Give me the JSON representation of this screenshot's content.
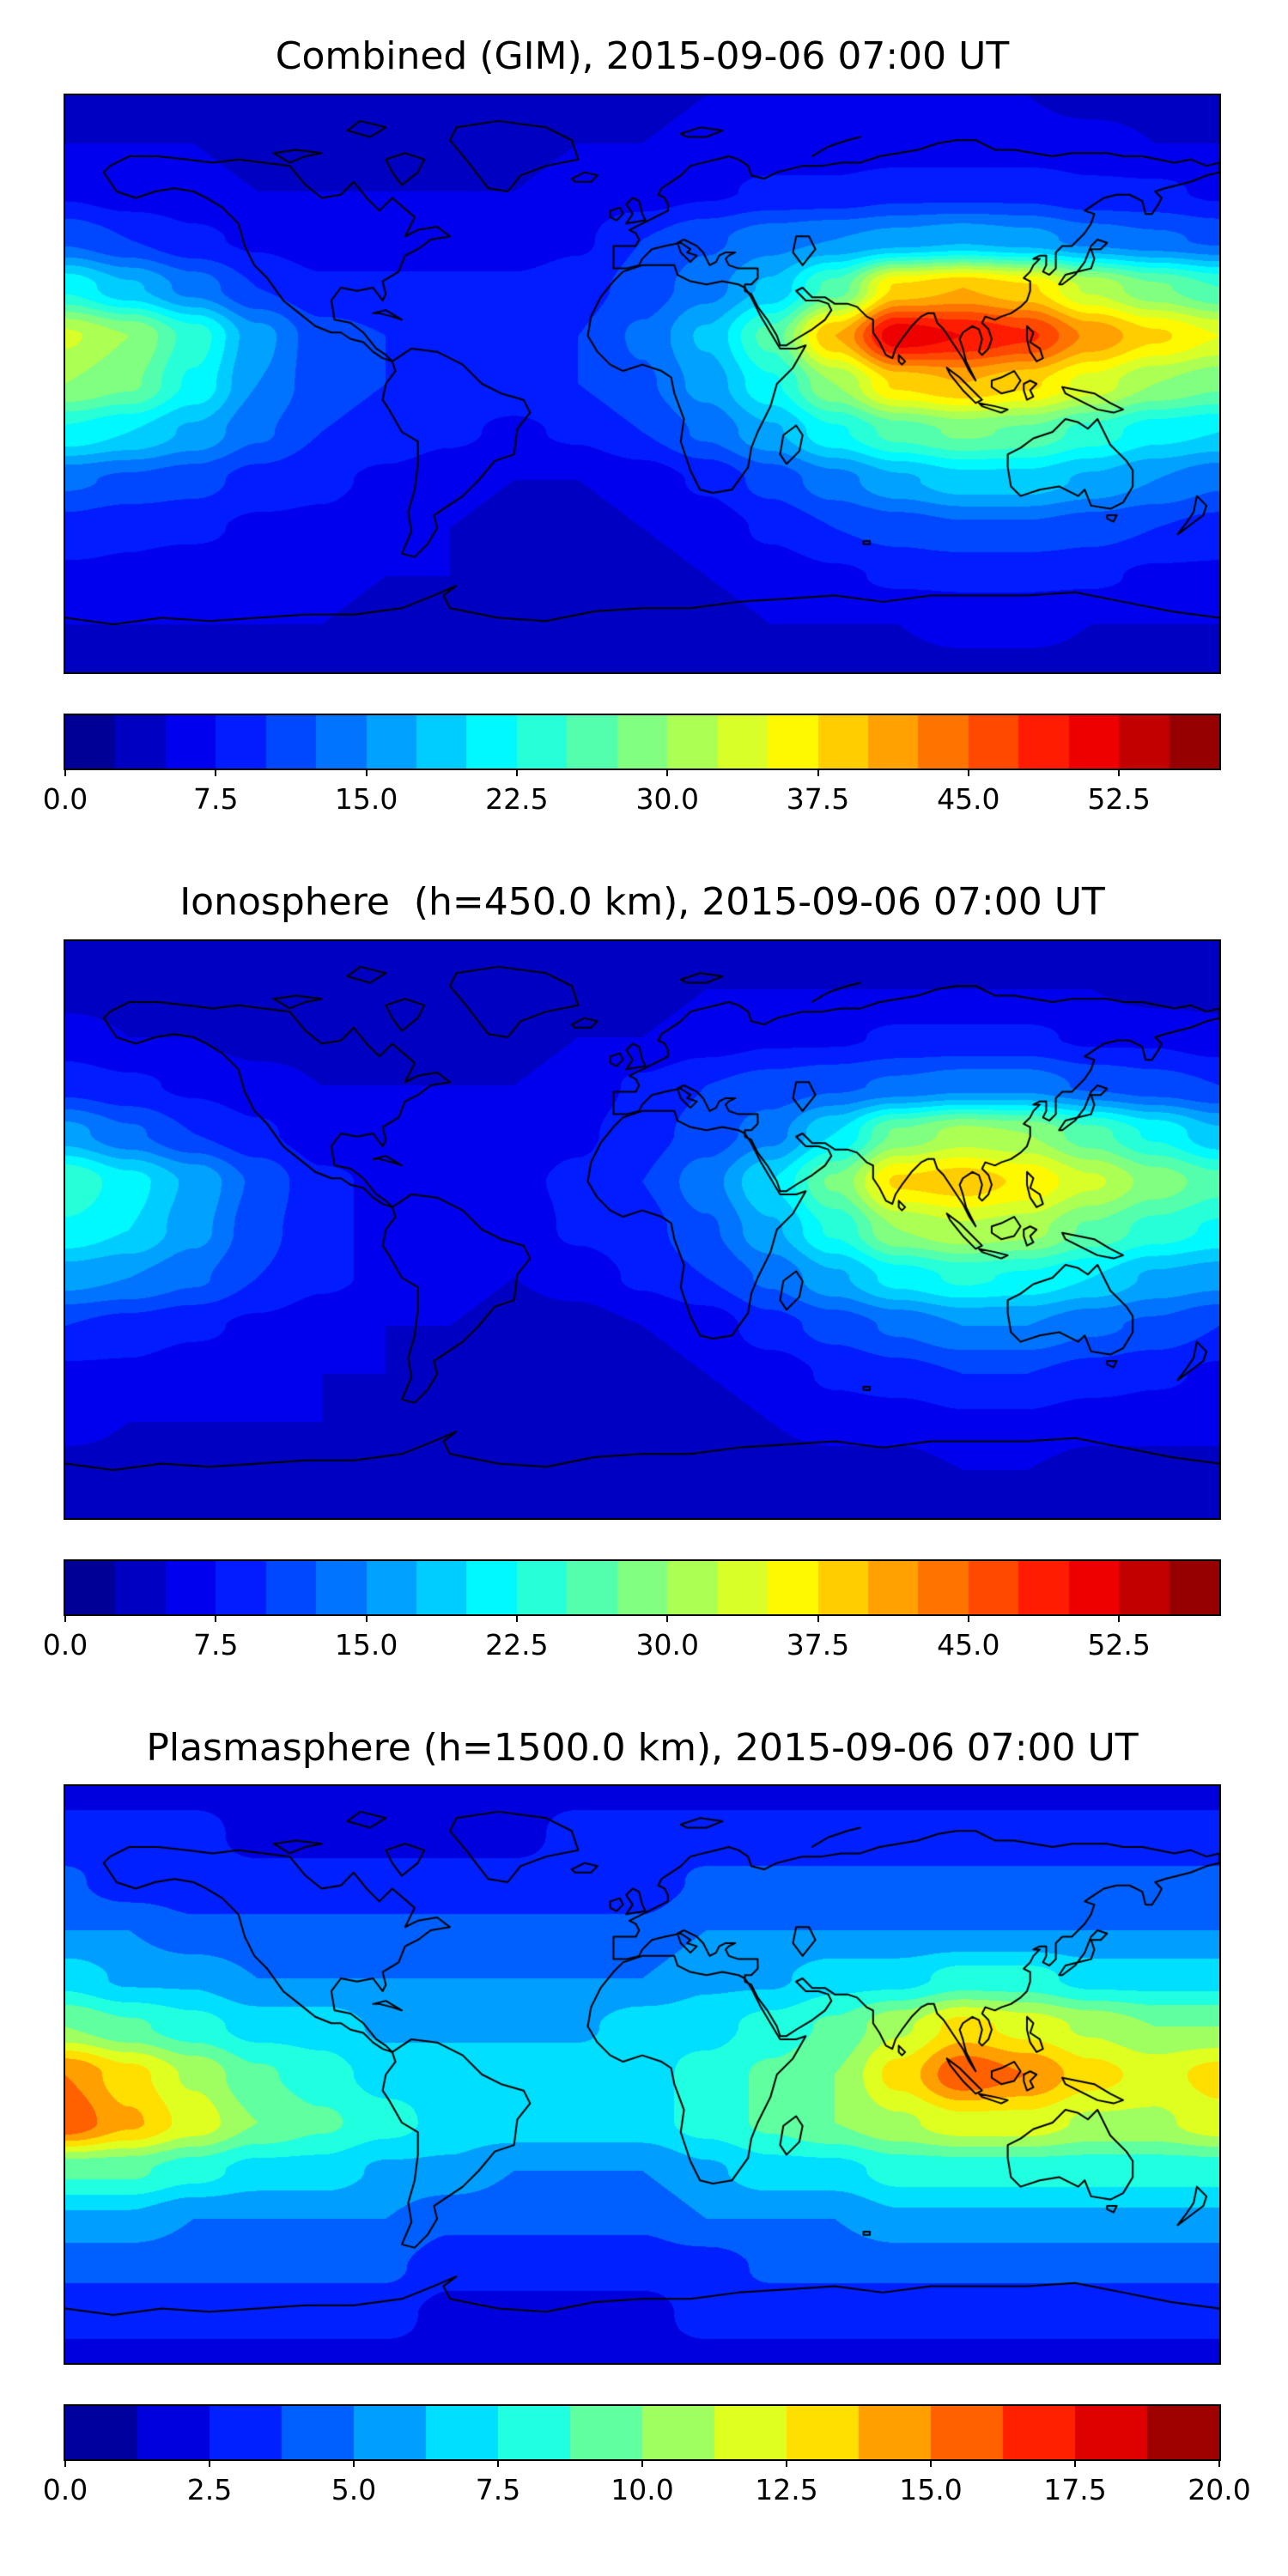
{
  "page": {
    "background": "#ffffff",
    "text_color": "#000000"
  },
  "chart_data": [
    {
      "type": "heatmap",
      "subtype": "filled-contour-world-map",
      "projection": "equirectangular",
      "title": "Combined (GIM), 2015-09-06 07:00 UT",
      "colormap": "jet",
      "vmin": 0.0,
      "vmax": 57.5,
      "n_levels": 23,
      "colorbar_ticks": [
        "0.0",
        "7.5",
        "15.0",
        "22.5",
        "30.0",
        "37.5",
        "45.0",
        "52.5"
      ],
      "overlay": "world-coastlines",
      "lon": [
        -180,
        -160,
        -140,
        -120,
        -100,
        -80,
        -60,
        -40,
        -20,
        0,
        20,
        40,
        60,
        80,
        100,
        120,
        140,
        160,
        180
      ],
      "lat": [
        90,
        75,
        60,
        45,
        30,
        15,
        0,
        -15,
        -30,
        -45,
        -60,
        -75,
        -90
      ],
      "values": [
        [
          4,
          4,
          4,
          4,
          4,
          4,
          4,
          4,
          4,
          4,
          5,
          5,
          5,
          5,
          5,
          5,
          4,
          4,
          4
        ],
        [
          5,
          5,
          5,
          4,
          4,
          4,
          4,
          4,
          5,
          5,
          6,
          6,
          6,
          6,
          6,
          6,
          6,
          5,
          5
        ],
        [
          7,
          6,
          6,
          5,
          5,
          5,
          5,
          5,
          6,
          6,
          7,
          8,
          8,
          9,
          9,
          9,
          8,
          8,
          7
        ],
        [
          12,
          10,
          8,
          7,
          6,
          6,
          6,
          6,
          7,
          10,
          12,
          14,
          15,
          16,
          17,
          16,
          14,
          13,
          12
        ],
        [
          22,
          18,
          14,
          10,
          8,
          8,
          8,
          8,
          9,
          11,
          14,
          18,
          26,
          38,
          40,
          38,
          32,
          28,
          25
        ],
        [
          33,
          30,
          24,
          16,
          11,
          10,
          9,
          9,
          10,
          13,
          18,
          26,
          40,
          52,
          50,
          48,
          42,
          38,
          35
        ],
        [
          30,
          28,
          22,
          15,
          11,
          10,
          9,
          9,
          10,
          12,
          16,
          22,
          30,
          38,
          40,
          38,
          34,
          30,
          28
        ],
        [
          22,
          20,
          17,
          13,
          10,
          9,
          8,
          7,
          8,
          10,
          13,
          17,
          22,
          26,
          28,
          27,
          24,
          21,
          20
        ],
        [
          13,
          12,
          11,
          9,
          8,
          7,
          6,
          5,
          5,
          6,
          8,
          11,
          14,
          17,
          19,
          19,
          17,
          15,
          13
        ],
        [
          9,
          8,
          8,
          7,
          7,
          6,
          5,
          4,
          4,
          5,
          6,
          8,
          10,
          11,
          12,
          12,
          11,
          10,
          9
        ],
        [
          7,
          7,
          6,
          6,
          6,
          5,
          5,
          4,
          4,
          4,
          5,
          6,
          7,
          8,
          8,
          8,
          8,
          7,
          7
        ],
        [
          5,
          5,
          5,
          5,
          5,
          4,
          4,
          4,
          4,
          4,
          4,
          5,
          5,
          5,
          6,
          6,
          5,
          5,
          5
        ],
        [
          4,
          4,
          4,
          4,
          4,
          4,
          4,
          4,
          4,
          4,
          4,
          4,
          4,
          4,
          4,
          4,
          4,
          4,
          4
        ]
      ]
    },
    {
      "type": "heatmap",
      "subtype": "filled-contour-world-map",
      "projection": "equirectangular",
      "title": "Ionosphere  (h=450.0 km), 2015-09-06 07:00 UT",
      "colormap": "jet",
      "vmin": 0.0,
      "vmax": 57.5,
      "n_levels": 23,
      "colorbar_ticks": [
        "0.0",
        "7.5",
        "15.0",
        "22.5",
        "30.0",
        "37.5",
        "45.0",
        "52.5"
      ],
      "overlay": "world-coastlines",
      "lon": [
        -180,
        -160,
        -140,
        -120,
        -100,
        -80,
        -60,
        -40,
        -20,
        0,
        20,
        40,
        60,
        80,
        100,
        120,
        140,
        160,
        180
      ],
      "lat": [
        90,
        75,
        60,
        45,
        30,
        15,
        0,
        -15,
        -30,
        -45,
        -60,
        -75,
        -90
      ],
      "values": [
        [
          3,
          3,
          3,
          3,
          3,
          3,
          3,
          3,
          3,
          4,
          4,
          4,
          4,
          4,
          4,
          4,
          4,
          3,
          3
        ],
        [
          4,
          4,
          4,
          3,
          3,
          3,
          3,
          3,
          4,
          4,
          5,
          5,
          5,
          5,
          5,
          5,
          5,
          4,
          4
        ],
        [
          6,
          5,
          5,
          4,
          4,
          4,
          4,
          4,
          5,
          5,
          6,
          7,
          7,
          8,
          8,
          8,
          7,
          7,
          6
        ],
        [
          9,
          8,
          7,
          6,
          5,
          5,
          5,
          5,
          6,
          8,
          10,
          11,
          12,
          13,
          14,
          14,
          12,
          11,
          10
        ],
        [
          16,
          13,
          10,
          8,
          6,
          6,
          6,
          6,
          7,
          9,
          11,
          14,
          20,
          28,
          31,
          30,
          26,
          22,
          18
        ],
        [
          25,
          21,
          17,
          12,
          8,
          7,
          7,
          7,
          8,
          10,
          14,
          20,
          28,
          38,
          39,
          37,
          33,
          29,
          26
        ],
        [
          22,
          20,
          16,
          11,
          8,
          7,
          7,
          6,
          8,
          9,
          12,
          17,
          23,
          30,
          32,
          31,
          27,
          24,
          22
        ],
        [
          16,
          15,
          13,
          10,
          8,
          7,
          6,
          5,
          6,
          8,
          10,
          13,
          17,
          21,
          23,
          22,
          20,
          17,
          16
        ],
        [
          10,
          9,
          8,
          7,
          6,
          5,
          5,
          4,
          4,
          5,
          6,
          9,
          11,
          13,
          15,
          15,
          13,
          12,
          10
        ],
        [
          7,
          7,
          6,
          6,
          5,
          5,
          4,
          3,
          3,
          4,
          5,
          6,
          8,
          9,
          10,
          10,
          9,
          8,
          7
        ],
        [
          6,
          5,
          5,
          5,
          5,
          4,
          4,
          3,
          3,
          3,
          4,
          5,
          6,
          6,
          7,
          7,
          6,
          6,
          6
        ],
        [
          4,
          4,
          4,
          4,
          4,
          3,
          3,
          3,
          3,
          3,
          3,
          4,
          4,
          4,
          5,
          5,
          4,
          4,
          4
        ],
        [
          3,
          3,
          3,
          3,
          3,
          3,
          3,
          3,
          3,
          3,
          3,
          3,
          3,
          3,
          3,
          3,
          3,
          3,
          3
        ]
      ]
    },
    {
      "type": "heatmap",
      "subtype": "filled-contour-world-map",
      "projection": "equirectangular",
      "title": "Plasmasphere (h=1500.0 km), 2015-09-06 07:00 UT",
      "colormap": "jet",
      "vmin": 0.0,
      "vmax": 20.0,
      "n_levels": 16,
      "colorbar_ticks": [
        "0.0",
        "2.5",
        "5.0",
        "7.5",
        "10.0",
        "12.5",
        "15.0",
        "17.5",
        "20.0"
      ],
      "overlay": "world-coastlines",
      "lon": [
        -180,
        -160,
        -140,
        -120,
        -100,
        -80,
        -60,
        -40,
        -20,
        0,
        20,
        40,
        60,
        80,
        100,
        120,
        140,
        160,
        180
      ],
      "lat": [
        90,
        75,
        60,
        45,
        30,
        15,
        0,
        -15,
        -30,
        -45,
        -60,
        -75,
        -90
      ],
      "values": [
        [
          2,
          2,
          2,
          2,
          2,
          2,
          2,
          2,
          2,
          2,
          2,
          2,
          2,
          2,
          2,
          2,
          2,
          2,
          2
        ],
        [
          3,
          3,
          3,
          2,
          2,
          2,
          2,
          2,
          3,
          3,
          3,
          3,
          3,
          3,
          3,
          3,
          3,
          3,
          3
        ],
        [
          4,
          3,
          3,
          3,
          3,
          3,
          3,
          3,
          3,
          3,
          4,
          4,
          4,
          4,
          4,
          4,
          4,
          4,
          4
        ],
        [
          5,
          5,
          4,
          4,
          4,
          4,
          4,
          4,
          4,
          4,
          5,
          5,
          5,
          5,
          5,
          5,
          5,
          5,
          5
        ],
        [
          7,
          6,
          6,
          5,
          5,
          5,
          5,
          5,
          5,
          5,
          6,
          6,
          7,
          7,
          8,
          8,
          7,
          7,
          7
        ],
        [
          10,
          9,
          8,
          7,
          7,
          6,
          6,
          6,
          6,
          7,
          7,
          8,
          9,
          11,
          13,
          12,
          11,
          10,
          10
        ],
        [
          15,
          13,
          11,
          9,
          8,
          7,
          7,
          7,
          7,
          7,
          8,
          9,
          10,
          13,
          16,
          15,
          13,
          12,
          13
        ],
        [
          16,
          14,
          12,
          10,
          9,
          8,
          7,
          7,
          7,
          7,
          8,
          9,
          10,
          11,
          12,
          12,
          11,
          11,
          12
        ],
        [
          9,
          9,
          8,
          7,
          7,
          6,
          6,
          5,
          5,
          5,
          6,
          7,
          7,
          8,
          8,
          8,
          8,
          8,
          8
        ],
        [
          6,
          6,
          5,
          5,
          5,
          5,
          4,
          4,
          4,
          4,
          5,
          5,
          5,
          6,
          6,
          6,
          6,
          6,
          6
        ],
        [
          4,
          4,
          4,
          4,
          4,
          4,
          3,
          3,
          3,
          3,
          3,
          4,
          4,
          4,
          4,
          4,
          4,
          4,
          4
        ],
        [
          3,
          3,
          3,
          3,
          3,
          3,
          2,
          2,
          2,
          2,
          3,
          3,
          3,
          3,
          3,
          3,
          3,
          3,
          3
        ],
        [
          2,
          2,
          2,
          2,
          2,
          2,
          2,
          2,
          2,
          2,
          2,
          2,
          2,
          2,
          2,
          2,
          2,
          2,
          2
        ]
      ]
    }
  ]
}
